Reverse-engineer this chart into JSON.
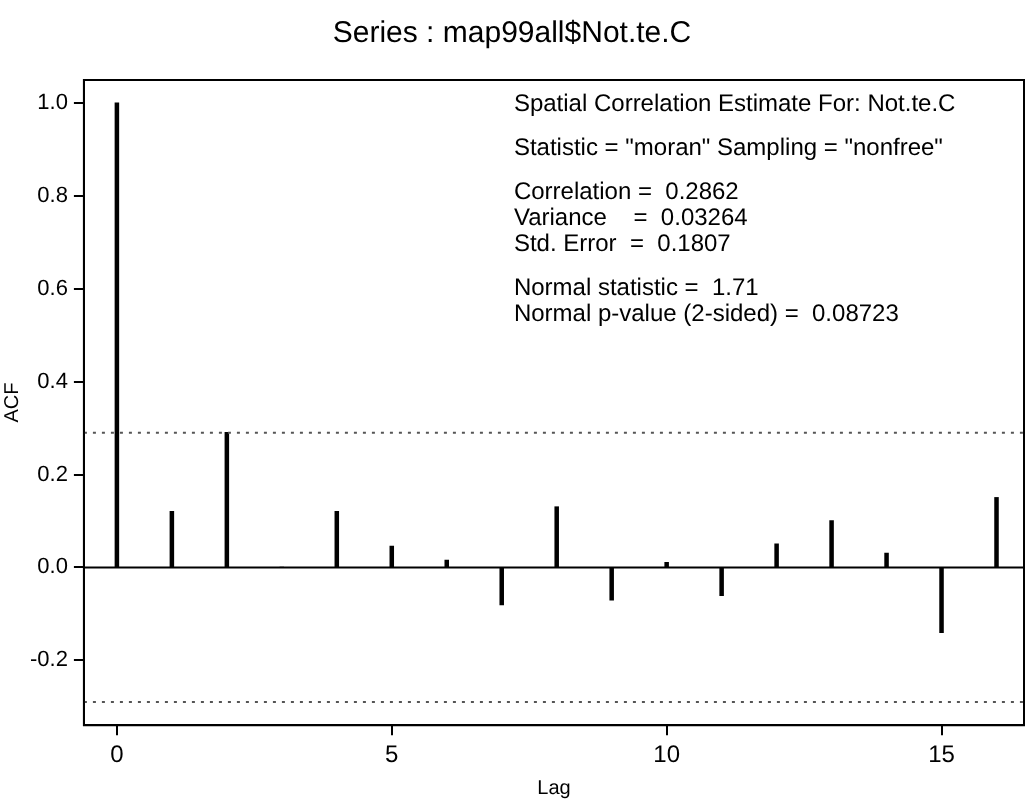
{
  "chart_data": {
    "type": "bar",
    "title": "Series : map99all$Not.te.C",
    "xlabel": "Lag",
    "ylabel": "ACF",
    "x": [
      0,
      1,
      2,
      3,
      4,
      5,
      6,
      7,
      8,
      9,
      10,
      11,
      12,
      13,
      14,
      15,
      16
    ],
    "values": [
      1.0,
      0.12,
      0.29,
      0,
      0.12,
      0.045,
      0.015,
      -0.08,
      0.13,
      -0.07,
      0.01,
      -0.06,
      0.05,
      0.1,
      0.03,
      -0.14,
      0.15
    ],
    "color": "#000000",
    "xlim": [
      -0.6,
      16.5
    ],
    "xticks": [
      0,
      5,
      10,
      15
    ],
    "ylim": [
      -0.34,
      1.05
    ],
    "yticks": [
      -0.2,
      {
        "value": 0,
        "label": "0.0"
      },
      0.2,
      0.4,
      0.6,
      0.8,
      {
        "value": 1,
        "label": "1.0"
      }
    ],
    "ref_lines": [
      {
        "axis": "y",
        "value": 0,
        "color": "#000000",
        "line_style": "solid"
      },
      {
        "axis": "y",
        "value": 0.29,
        "color": "#555555",
        "line_style": "dotted"
      },
      {
        "axis": "y",
        "value": -0.29,
        "color": "#555555",
        "line_style": "dotted"
      }
    ],
    "annotations": [
      "Spatial Correlation Estimate For: Not.te.C",
      "Statistic = \"moran\" Sampling = \"nonfree\"",
      "Correlation =  0.2862",
      "Variance    =  0.03264",
      "Std. Error  =  0.1807",
      "Normal statistic =  1.71",
      "Normal p-value (2-sided) =  0.08723"
    ],
    "grid": false,
    "legend": false
  }
}
